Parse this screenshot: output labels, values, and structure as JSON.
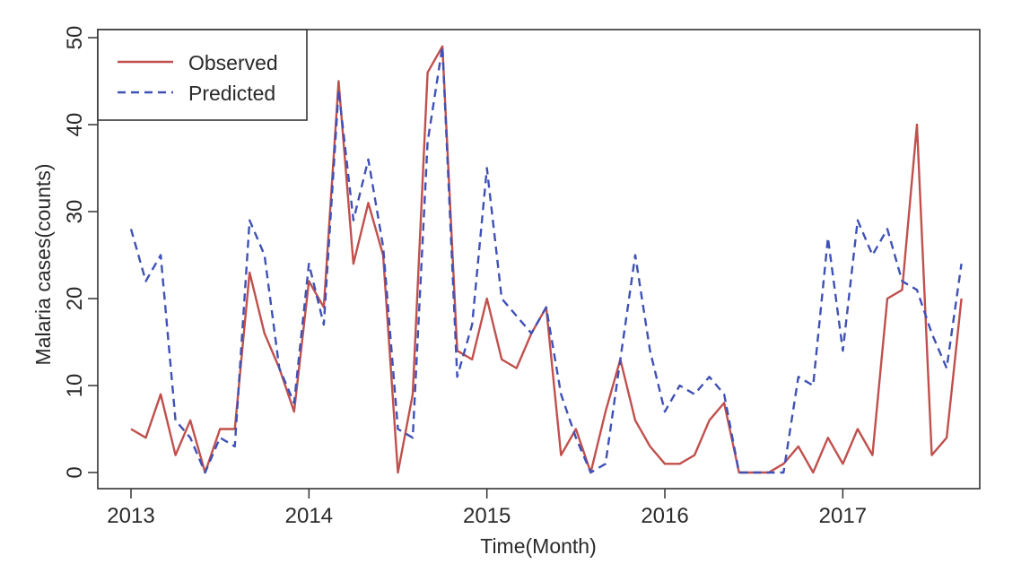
{
  "chart_data": {
    "type": "line",
    "title": "",
    "xlabel": "Time(Month)",
    "ylabel": "Malaria cases(counts)",
    "xlim": [
      2013,
      2017.583
    ],
    "ylim": [
      0,
      50
    ],
    "x_ticks": [
      2013,
      2014,
      2015,
      2016,
      2017
    ],
    "x_tick_labels": [
      "2013",
      "2014",
      "2015",
      "2016",
      "2017"
    ],
    "y_ticks": [
      0,
      10,
      20,
      30,
      40,
      50
    ],
    "y_tick_labels": [
      "0",
      "10",
      "20",
      "30",
      "40",
      "50"
    ],
    "grid": false,
    "legend": "top-left",
    "x_start_year": 2013,
    "x_months_per_step": 1,
    "series": [
      {
        "name": "Observed",
        "color": "#c0504d",
        "dash": "solid",
        "values": [
          5,
          4,
          9,
          2,
          6,
          0,
          5,
          5,
          23,
          16,
          12,
          7,
          22,
          19,
          45,
          24,
          31,
          25,
          0,
          9,
          46,
          49,
          14,
          13,
          20,
          13,
          12,
          16,
          19,
          2,
          5,
          0,
          7,
          13,
          6,
          3,
          1,
          1,
          2,
          6,
          8,
          0,
          0,
          0,
          1,
          3,
          0,
          4,
          1,
          5,
          2,
          20,
          21,
          40,
          2,
          4,
          20
        ]
      },
      {
        "name": "Predicted",
        "color": "#3f51b5",
        "dash": "dashed",
        "values": [
          28,
          22,
          25,
          6,
          4,
          0,
          4,
          3,
          29,
          25,
          12,
          8,
          24,
          17,
          44,
          29,
          36,
          26,
          5,
          4,
          38,
          49,
          11,
          17,
          35,
          20,
          18,
          16,
          19,
          9,
          4,
          0,
          1,
          13,
          25,
          14,
          7,
          10,
          9,
          11,
          9,
          0,
          0,
          0,
          0,
          11,
          10,
          27,
          14,
          29,
          25,
          28,
          22,
          21,
          16,
          12,
          24
        ]
      }
    ]
  }
}
